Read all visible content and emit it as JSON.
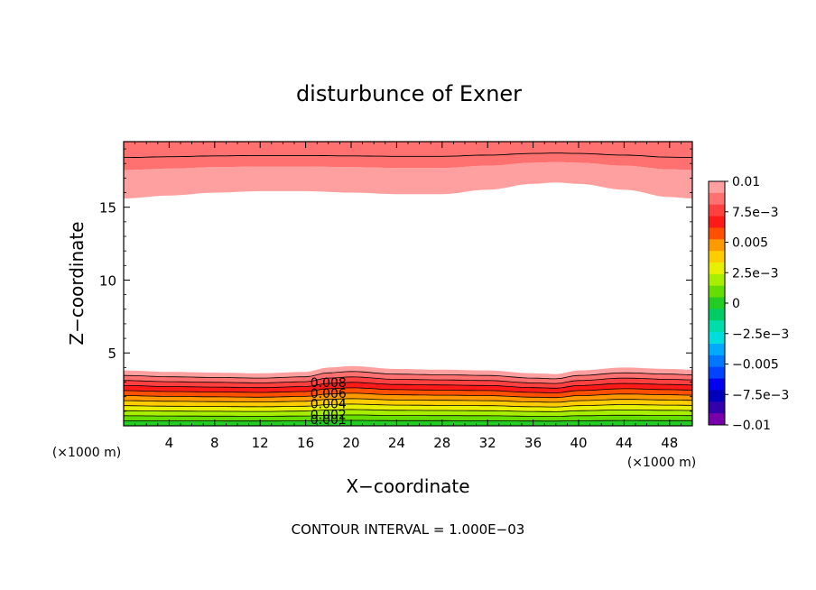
{
  "chart_data": {
    "type": "heatmap",
    "title": "disturbunce of Exner",
    "xlabel": "X−coordinate",
    "ylabel": "Z−coordinate",
    "x_unit_left": "(×1000 m)",
    "x_unit_right": "(×1000 m)",
    "xlim": [
      0,
      50
    ],
    "ylim": [
      0,
      19.5
    ],
    "x_ticks": [
      4,
      8,
      12,
      16,
      20,
      24,
      28,
      32,
      36,
      40,
      44,
      48
    ],
    "x_tick_labels": [
      "4",
      "8",
      "12",
      "16",
      "20",
      "24",
      "28",
      "32",
      "36",
      "40",
      "44",
      "48"
    ],
    "y_ticks": [
      5,
      10,
      15
    ],
    "y_tick_labels": [
      "5",
      "10",
      "15"
    ],
    "footer": "CONTOUR INTERVAL = 1.000E−03",
    "contour_interval": 0.001,
    "contour_labels": [
      {
        "text": "0.008",
        "value": 0.008
      },
      {
        "text": "0.006",
        "value": 0.006
      },
      {
        "text": "0.004",
        "value": 0.004
      },
      {
        "text": "0.002",
        "value": 0.002
      },
      {
        "text": "0.001",
        "value": 0.001
      }
    ],
    "colorbar": {
      "range": [
        -0.01,
        0.01
      ],
      "tick_labels": [
        "0.01",
        "7.5e−3",
        "0.005",
        "2.5e−3",
        "0",
        "−2.5e−3",
        "−0.005",
        "−7.5e−3",
        "−0.01"
      ],
      "tick_values": [
        0.01,
        0.0075,
        0.005,
        0.0025,
        0,
        -0.0025,
        -0.005,
        -0.0075,
        -0.01
      ],
      "levels_top_to_bottom": [
        {
          "value": 0.01,
          "color": "#ffa0a0"
        },
        {
          "value": 0.009,
          "color": "#ff7070"
        },
        {
          "value": 0.008,
          "color": "#ff4040"
        },
        {
          "value": 0.007,
          "color": "#ff1a1a"
        },
        {
          "value": 0.006,
          "color": "#ff5000"
        },
        {
          "value": 0.005,
          "color": "#ff9900"
        },
        {
          "value": 0.004,
          "color": "#ffcc00"
        },
        {
          "value": 0.003,
          "color": "#e6f000"
        },
        {
          "value": 0.002,
          "color": "#a8ee00"
        },
        {
          "value": 0.001,
          "color": "#66dd00"
        },
        {
          "value": 0.0,
          "color": "#22cc22"
        },
        {
          "value": -0.001,
          "color": "#00cc66"
        },
        {
          "value": -0.002,
          "color": "#00ddaa"
        },
        {
          "value": -0.003,
          "color": "#00dddd"
        },
        {
          "value": -0.004,
          "color": "#00aaff"
        },
        {
          "value": -0.005,
          "color": "#0077ff"
        },
        {
          "value": -0.006,
          "color": "#0044ff"
        },
        {
          "value": -0.007,
          "color": "#0000ee"
        },
        {
          "value": -0.008,
          "color": "#0000bb"
        },
        {
          "value": -0.009,
          "color": "#3300aa"
        },
        {
          "value": -0.01,
          "color": "#7700aa"
        }
      ]
    },
    "field_description": {
      "top_band_z_range": [
        15.5,
        19.5
      ],
      "top_band_values": [
        0.009,
        0.01
      ],
      "bottom_band_z_range": [
        0,
        4
      ],
      "bottom_band_values": [
        0.001,
        0.009
      ],
      "interior_value": 0.0
    },
    "top_boundary_profile": {
      "x": [
        0,
        4,
        8,
        12,
        16,
        20,
        24,
        28,
        32,
        36,
        38,
        40,
        44,
        48,
        50
      ],
      "z": [
        15.6,
        15.8,
        16.0,
        16.1,
        16.1,
        16.0,
        15.9,
        15.9,
        16.2,
        16.6,
        16.7,
        16.6,
        16.2,
        15.7,
        15.6
      ]
    },
    "bottom_boundary_profile": {
      "x": [
        0,
        4,
        8,
        12,
        16,
        18,
        20,
        24,
        28,
        32,
        36,
        38,
        40,
        44,
        48,
        50
      ],
      "z": [
        3.8,
        3.7,
        3.65,
        3.6,
        3.7,
        4.0,
        4.1,
        3.9,
        3.85,
        3.8,
        3.6,
        3.55,
        3.8,
        4.0,
        3.9,
        3.85
      ]
    }
  }
}
